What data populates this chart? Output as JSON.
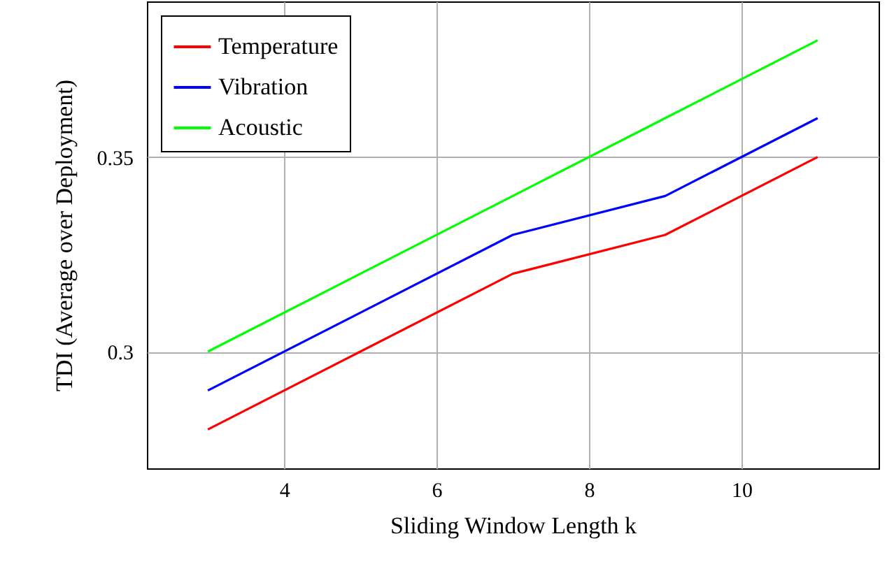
{
  "chart_data": {
    "type": "line",
    "xlabel": "Sliding Window Length k",
    "ylabel": "TDI (Average over Deployment)",
    "x": [
      3,
      5,
      7,
      9,
      11
    ],
    "series": [
      {
        "name": "Temperature",
        "color": "#ff0000",
        "values": [
          0.28,
          0.3,
          0.32,
          0.33,
          0.35
        ]
      },
      {
        "name": "Vibration",
        "color": "#0000ff",
        "values": [
          0.29,
          0.31,
          0.33,
          0.34,
          0.36
        ]
      },
      {
        "name": "Acoustic",
        "color": "#00ff00",
        "values": [
          0.3,
          0.32,
          0.34,
          0.36,
          0.38
        ]
      }
    ],
    "xlim": [
      2.2,
      11.8
    ],
    "ylim": [
      0.27,
      0.39
    ],
    "xticks": [
      4,
      6,
      8,
      10
    ],
    "yticks": [
      0.3,
      0.35
    ],
    "grid": true,
    "legend": "top left",
    "marker": "none",
    "line_style": "solid"
  }
}
